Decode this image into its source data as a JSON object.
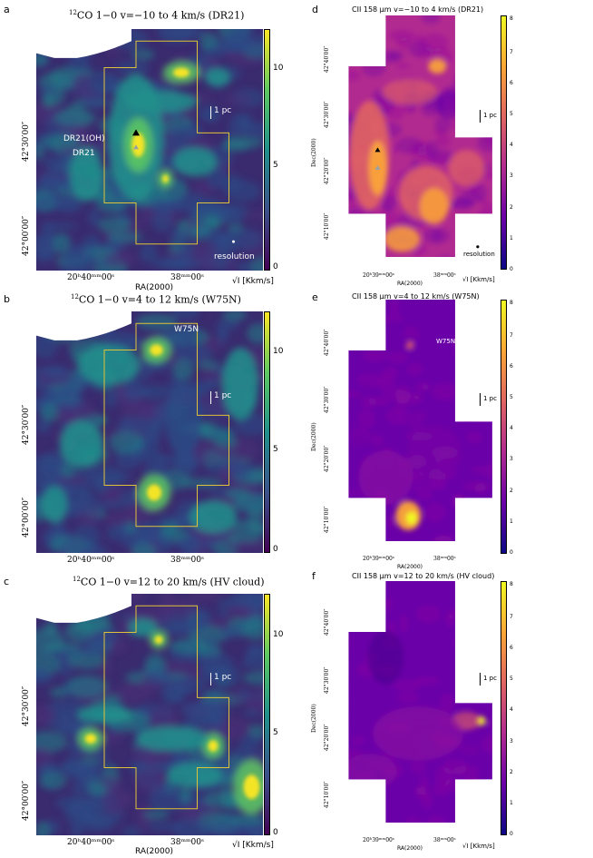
{
  "colors": {
    "viridis": [
      "#440154",
      "#3b528b",
      "#21918c",
      "#5ec962",
      "#fde725"
    ],
    "plasma": [
      "#0d0887",
      "#6a00a8",
      "#b12a90",
      "#e16462",
      "#fca636",
      "#f0f921"
    ],
    "box_outline": "#e0c23a"
  },
  "panels": [
    {
      "id": "a",
      "label": "a",
      "title_sup": "12",
      "title": "CO 1−0 v=−10 to 4 km/s (DR21)",
      "cmap": "viridis",
      "field": "dr21_co",
      "cbar_ticks": [
        "0",
        "5",
        "10"
      ],
      "cbar_label": "√I [Kkm/s]",
      "xticks": [
        "20ʰ40ᵐᵐ00ˢ",
        "38ᵐᵐ00ˢ"
      ],
      "xlabel": "RA(2000)",
      "yticks": [
        "42°00′00″",
        "42°30′00″"
      ],
      "ylabel": "",
      "scalebar_label": "1 pc",
      "annotations": [
        "DR21(OH)",
        "DR21",
        "resolution"
      ]
    },
    {
      "id": "b",
      "label": "b",
      "title_sup": "12",
      "title": "CO 1−0 v=4 to 12 km/s (W75N)",
      "cmap": "viridis",
      "field": "w75n_co",
      "cbar_ticks": [
        "0",
        "5",
        "10"
      ],
      "cbar_label": "√I [Kkm/s]",
      "xticks": [
        "20ʰ40ᵐᵐ00ˢ",
        "38ᵐᵐ00ˢ"
      ],
      "xlabel": "RA(2000)",
      "yticks": [
        "42°00′00″",
        "42°30′00″"
      ],
      "ylabel": "",
      "scalebar_label": "1 pc",
      "annotations": [
        "W75N"
      ]
    },
    {
      "id": "c",
      "label": "c",
      "title_sup": "12",
      "title": "CO 1−0 v=12 to 20 km/s (HV cloud)",
      "cmap": "viridis",
      "field": "hv_co",
      "cbar_ticks": [
        "0",
        "5",
        "10"
      ],
      "cbar_label": "√I [Kkm/s]",
      "xticks": [
        "20ʰ40ᵐᵐ00ˢ",
        "38ᵐᵐ00ˢ"
      ],
      "xlabel": "RA(2000)",
      "yticks": [
        "42°00′00″",
        "42°30′00″"
      ],
      "ylabel": "",
      "scalebar_label": "1 pc",
      "annotations": []
    },
    {
      "id": "d",
      "label": "d",
      "title_sup": "",
      "title": "CII 158 μm v=−10 to 4 km/s (DR21)",
      "cmap": "plasma",
      "field": "dr21_cii",
      "cbar_ticks": [
        "0",
        "1",
        "2",
        "3",
        "4",
        "5",
        "6",
        "7",
        "8"
      ],
      "cbar_label": "√I [Kkm/s]",
      "xticks": [
        "20ʰ39ᵐᵐ00ˢ",
        "38ᵐᵐ00ˢ"
      ],
      "xlabel": "RA(2000)",
      "yticks": [
        "42°10′00″",
        "42°20′00″",
        "42°30′00″",
        "42°40′00″"
      ],
      "ylabel": "Dec(2000)",
      "scalebar_label": "1 pc",
      "annotations": [
        "resolution"
      ]
    },
    {
      "id": "e",
      "label": "e",
      "title_sup": "",
      "title": "CII 158 μm v=4 to 12 km/s (W75N)",
      "cmap": "plasma",
      "field": "w75n_cii",
      "cbar_ticks": [
        "0",
        "1",
        "2",
        "3",
        "4",
        "5",
        "6",
        "7",
        "8"
      ],
      "cbar_label": "√I [Kkm/s]",
      "xticks": [
        "20ʰ39ᵐᵐ00ˢ",
        "38ᵐᵐ00ˢ"
      ],
      "xlabel": "RA(2000)",
      "yticks": [
        "42°10′00″",
        "42°20′00″",
        "42°30′00″",
        "42°40′00″"
      ],
      "ylabel": "Dec(2000)",
      "scalebar_label": "1 pc",
      "annotations": [
        "W75N"
      ]
    },
    {
      "id": "f",
      "label": "f",
      "title_sup": "",
      "title": "CII 158 μm v=12 to 20 km/s (HV cloud)",
      "cmap": "plasma",
      "field": "hv_cii",
      "cbar_ticks": [
        "0",
        "1",
        "2",
        "3",
        "4",
        "5",
        "6",
        "7",
        "8"
      ],
      "cbar_label": "√I [Kkm/s]",
      "xticks": [
        "20ʰ39ᵐᵐ00ˢ",
        "38ᵐᵐ00ˢ"
      ],
      "xlabel": "RA(2000)",
      "yticks": [
        "42°10′00″",
        "42°20′00″",
        "42°30′00″",
        "42°40′00″"
      ],
      "ylabel": "Dec(2000)",
      "scalebar_label": "1 pc",
      "annotations": []
    }
  ]
}
